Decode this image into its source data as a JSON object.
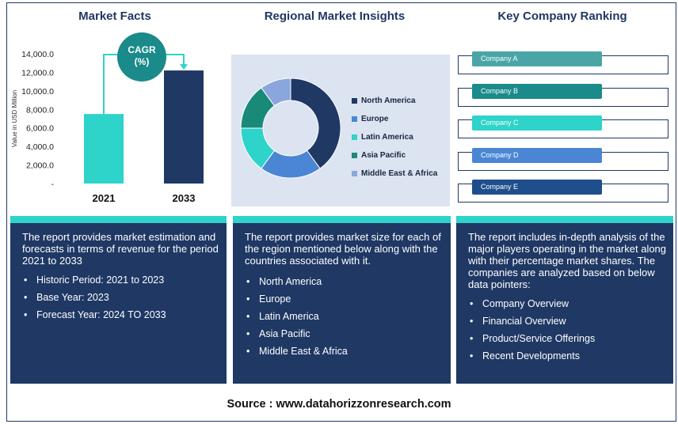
{
  "headers": {
    "market_facts": "Market Facts",
    "regional": "Regional Market Insights",
    "ranking": "Key Company Ranking"
  },
  "cagr": {
    "line1": "CAGR",
    "line2": "(%)"
  },
  "colors": {
    "navy": "#1f3864",
    "teal_bar": "#2ed3c9",
    "cagr_teal": "#1a8a8a",
    "panel_bg": "#dbe4f0"
  },
  "chart_data": [
    {
      "type": "bar",
      "categories": [
        "2021",
        "2033"
      ],
      "values": [
        7500,
        12200
      ],
      "colors": [
        "#2ed3c9",
        "#1f3864"
      ],
      "title": "Market Facts",
      "xlabel": "",
      "ylabel": "Value in USD Million",
      "ylim": [
        0,
        14000
      ],
      "yticks": [
        {
          "value": 0,
          "label": "-"
        },
        {
          "value": 2000,
          "label": "2,000.0"
        },
        {
          "value": 4000,
          "label": "4,000.0"
        },
        {
          "value": 6000,
          "label": "6,000.0"
        },
        {
          "value": 8000,
          "label": "8,000.0"
        },
        {
          "value": 10000,
          "label": "10,000.0"
        },
        {
          "value": 12000,
          "label": "12,000.0"
        },
        {
          "value": 14000,
          "label": "14,000.0"
        }
      ]
    },
    {
      "type": "pie",
      "title": "Regional Market Insights",
      "donut": true,
      "labels": [
        "North America",
        "Europe",
        "Latin America",
        "Asia Pacific",
        "Middle East & Africa"
      ],
      "values": [
        40,
        20,
        15,
        15,
        10
      ],
      "colors": [
        "#1f3864",
        "#4a86d4",
        "#2ed3c9",
        "#1a8a78",
        "#8aa6dc"
      ],
      "legend": "right"
    }
  ],
  "companies": [
    {
      "label": "Company A",
      "color": "#4aa6a6"
    },
    {
      "label": "Company B",
      "color": "#1a8a8a"
    },
    {
      "label": "Company C",
      "color": "#2ed3c9"
    },
    {
      "label": "Company D",
      "color": "#4a86d4"
    },
    {
      "label": "Company E",
      "color": "#1f4e8c"
    }
  ],
  "boxes": {
    "facts": {
      "text": "The report provides market estimation and forecasts in terms of revenue for the period 2021 to 2033",
      "items": [
        "Historic Period: 2021 to 2023",
        "Base Year: 2023",
        "Forecast Year: 2024 TO 2033"
      ]
    },
    "regional": {
      "text": "The report provides market size for each of the region mentioned below along with the countries associated with it.",
      "items": [
        "North America",
        "Europe",
        "Latin America",
        "Asia Pacific",
        "Middle East & Africa"
      ]
    },
    "ranking": {
      "text": "The report includes in-depth analysis of the major players operating in the market along with their percentage market shares. The companies are analyzed based on below data pointers:",
      "items": [
        "Company Overview",
        "Financial Overview",
        "Product/Service Offerings",
        "Recent Developments"
      ]
    }
  },
  "source": "Source : www.datahorizzonresearch.com"
}
